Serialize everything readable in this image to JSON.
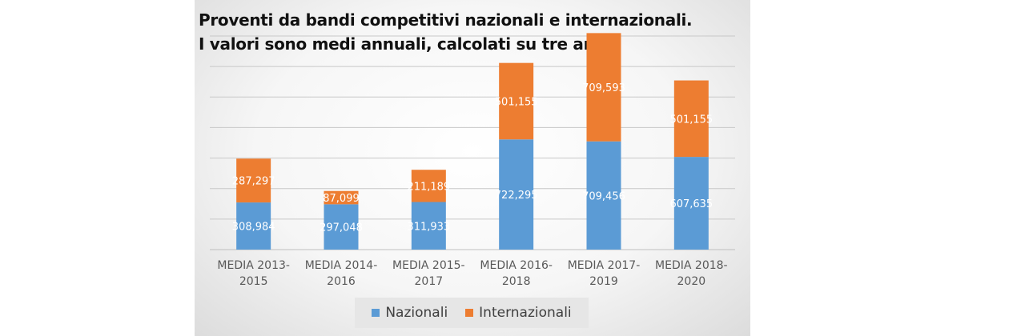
{
  "chart_data": {
    "type": "bar",
    "stacked": true,
    "title_lines": [
      "Proventi da bandi competitivi nazionali e internazionali.",
      "I valori sono medi annuali, calcolati su tre anni"
    ],
    "categories": [
      [
        "MEDIA 2013-",
        "2015"
      ],
      [
        "MEDIA 2014-",
        "2016"
      ],
      [
        "MEDIA 2015-",
        "2017"
      ],
      [
        "MEDIA 2016-",
        "2018"
      ],
      [
        "MEDIA 2017-",
        "2019"
      ],
      [
        "MEDIA 2018-",
        "2020"
      ]
    ],
    "series": [
      {
        "name": "Nazionali",
        "color": "#5b9bd5",
        "values": [
          308984,
          297048,
          311933,
          722295,
          709456,
          607635
        ],
        "labels": [
          "308,984",
          "297,048",
          "311,933",
          "722,295",
          "709,456",
          "607,635"
        ]
      },
      {
        "name": "Internazionali",
        "color": "#ed7d31",
        "values": [
          287297,
          87099,
          211189,
          501155,
          709593,
          501155
        ],
        "labels": [
          "287,297",
          "87,099",
          "211,189",
          "501,155",
          "709,593",
          "501,155"
        ]
      }
    ],
    "ylim": [
      0,
      1400000
    ],
    "y_gridline_step": 200000,
    "y_axis_labels_shown": false,
    "grid": true,
    "legend_position": "bottom"
  }
}
